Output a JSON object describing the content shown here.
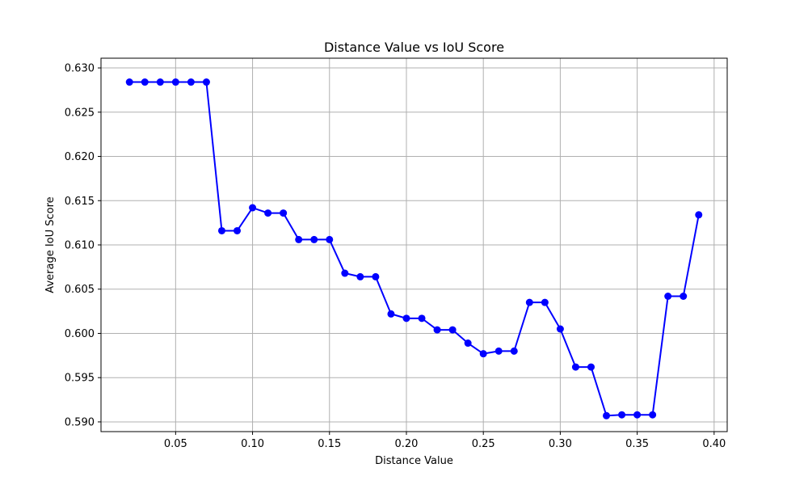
{
  "chart_data": {
    "type": "line",
    "title": "Distance Value vs IoU Score",
    "xlabel": "Distance Value",
    "ylabel": "Average IoU Score",
    "xlim": [
      0.0015,
      0.4085
    ],
    "ylim": [
      0.5889,
      0.6311
    ],
    "xticks": [
      0.05,
      0.1,
      0.15,
      0.2,
      0.25,
      0.3,
      0.35,
      0.4
    ],
    "xtick_labels": [
      "0.05",
      "0.10",
      "0.15",
      "0.20",
      "0.25",
      "0.30",
      "0.35",
      "0.40"
    ],
    "yticks": [
      0.59,
      0.595,
      0.6,
      0.605,
      0.61,
      0.615,
      0.62,
      0.625,
      0.63
    ],
    "ytick_labels": [
      "0.590",
      "0.595",
      "0.600",
      "0.605",
      "0.610",
      "0.615",
      "0.620",
      "0.625",
      "0.630"
    ],
    "grid": true,
    "series": [
      {
        "color": "#0000ff",
        "marker": "circle",
        "x": [
          0.02,
          0.03,
          0.04,
          0.05,
          0.06,
          0.07,
          0.08,
          0.09,
          0.1,
          0.11,
          0.12,
          0.13,
          0.14,
          0.15,
          0.16,
          0.17,
          0.18,
          0.19,
          0.2,
          0.21,
          0.22,
          0.23,
          0.24,
          0.25,
          0.26,
          0.27,
          0.28,
          0.29,
          0.3,
          0.31,
          0.32,
          0.33,
          0.34,
          0.35,
          0.36,
          0.37,
          0.38,
          0.39
        ],
        "y": [
          0.6284,
          0.6284,
          0.6284,
          0.6284,
          0.6284,
          0.6284,
          0.6116,
          0.6116,
          0.6142,
          0.6136,
          0.6136,
          0.6106,
          0.6106,
          0.6106,
          0.6068,
          0.6064,
          0.6064,
          0.6022,
          0.6017,
          0.6017,
          0.6004,
          0.6004,
          0.5989,
          0.5977,
          0.598,
          0.598,
          0.6035,
          0.6035,
          0.6005,
          0.5962,
          0.5962,
          0.5907,
          0.5908,
          0.5908,
          0.5908,
          0.6042,
          0.6042,
          0.6134
        ]
      }
    ]
  }
}
